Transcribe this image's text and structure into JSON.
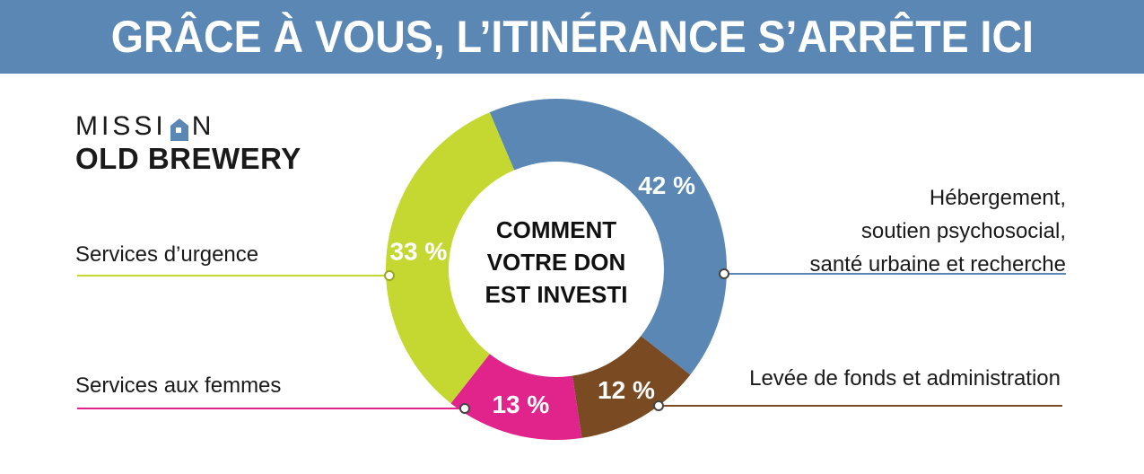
{
  "banner": {
    "title": "GRÂCE À VOUS, L’ITINÉRANCE S’ARRÊTE ICI",
    "color": "#5b87b5"
  },
  "logo": {
    "line1_left": "MISSI",
    "line1_right": "N",
    "line2": "OLD BREWERY",
    "icon": "house-icon"
  },
  "center": {
    "lines": [
      "COMMENT",
      "VOTRE DON",
      "EST INVESTI"
    ]
  },
  "chart_data": {
    "type": "pie",
    "donut": true,
    "title": "",
    "slices": [
      {
        "label_lines": [
          "Hébergement,",
          "soutien psychosocial,",
          "santé urbaine et recherche"
        ],
        "value": 42,
        "display": "42 %",
        "color": "#5b87b5",
        "side": "right"
      },
      {
        "label_lines": [
          "Levée de fonds et administration"
        ],
        "value": 12,
        "display": "12 %",
        "color": "#7a4a22",
        "side": "right"
      },
      {
        "label_lines": [
          "Services aux femmes"
        ],
        "value": 13,
        "display": "13 %",
        "color": "#e0248c",
        "side": "left"
      },
      {
        "label_lines": [
          "Services d’urgence"
        ],
        "value": 33,
        "display": "33 %",
        "color": "#c4d831",
        "side": "left"
      }
    ]
  }
}
